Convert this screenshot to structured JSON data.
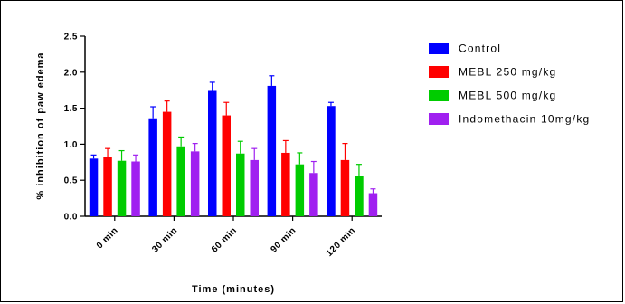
{
  "chart_data": {
    "type": "bar",
    "title": "",
    "xlabel": "Time (minutes)",
    "ylabel": "% inhibition of paw edema",
    "ylim": [
      0,
      2.5
    ],
    "yticks": [
      "0.0",
      "0.5",
      "1.0",
      "1.5",
      "2.0",
      "2.5"
    ],
    "categories": [
      "0 min",
      "30 min",
      "60 min",
      "90 min",
      "120 min"
    ],
    "legend_position": "right",
    "grid": false,
    "series": [
      {
        "name": "Control",
        "color": "#0000FF",
        "values": [
          0.8,
          1.36,
          1.74,
          1.81,
          1.53
        ],
        "errors": [
          0.05,
          0.16,
          0.12,
          0.14,
          0.05
        ]
      },
      {
        "name": "MEBL 250 mg/kg",
        "color": "#FF0000",
        "values": [
          0.82,
          1.45,
          1.4,
          0.88,
          0.78
        ],
        "errors": [
          0.12,
          0.15,
          0.18,
          0.17,
          0.23
        ]
      },
      {
        "name": "MEBL 500 mg/kg",
        "color": "#00CC00",
        "values": [
          0.77,
          0.97,
          0.87,
          0.72,
          0.56
        ],
        "errors": [
          0.14,
          0.13,
          0.17,
          0.16,
          0.16
        ]
      },
      {
        "name": "Indomethacin 10mg/kg",
        "color": "#A020F0",
        "values": [
          0.76,
          0.9,
          0.78,
          0.6,
          0.32
        ],
        "errors": [
          0.09,
          0.11,
          0.16,
          0.16,
          0.06
        ]
      }
    ]
  }
}
